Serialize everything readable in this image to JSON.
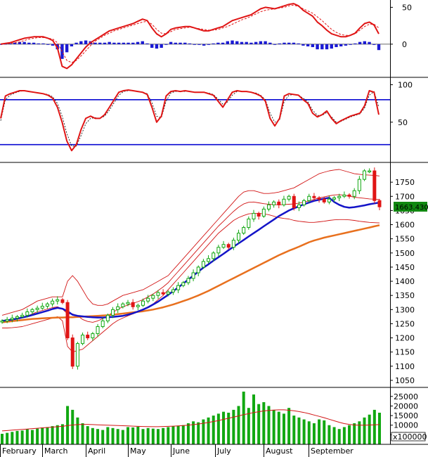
{
  "colors": {
    "up": "#11a811",
    "down": "#e01515",
    "ma_blue": "#1414c8",
    "ma_orange": "#e8701e",
    "band": "#d21414",
    "signal": "#e01515",
    "level_line": "#0a0ad2",
    "histogram": "#1a1ad4",
    "grid": "#c8c8c8",
    "tag_bg": "#118811"
  },
  "chart_data": [
    {
      "type": "line",
      "panel": "macd",
      "y_ticks": [
        "50",
        "0"
      ],
      "ylim": [
        -45,
        58
      ],
      "series": [
        {
          "values": [
            0,
            1,
            2,
            4,
            6,
            8,
            9,
            10,
            10,
            10,
            8,
            5,
            -5,
            -30,
            -33,
            -28,
            -20,
            -12,
            -4,
            2,
            6,
            10,
            14,
            18,
            20,
            22,
            24,
            26,
            28,
            31,
            34,
            32,
            22,
            14,
            10,
            14,
            20,
            22,
            23,
            24,
            24,
            22,
            20,
            18,
            18,
            20,
            22,
            24,
            28,
            32,
            34,
            36,
            38,
            40,
            44,
            48,
            50,
            49,
            48,
            50,
            52,
            54,
            55,
            52,
            46,
            42,
            38,
            30,
            25,
            19,
            14,
            12,
            10,
            10,
            12,
            15,
            22,
            28,
            30,
            26,
            14
          ]
        },
        {
          "values": [
            0,
            0.5,
            1,
            2,
            3,
            5,
            7,
            8,
            9,
            9,
            8,
            7,
            2,
            -10,
            -22,
            -25,
            -22,
            -16,
            -9,
            -2,
            4,
            8,
            12,
            15,
            18,
            20,
            22,
            24,
            26,
            28,
            30,
            31,
            27,
            20,
            15,
            14,
            17,
            20,
            21,
            22,
            23,
            22,
            21,
            20,
            19,
            19,
            20,
            22,
            24,
            27,
            30,
            33,
            35,
            38,
            41,
            44,
            46,
            47,
            48,
            49,
            50,
            52,
            53,
            51,
            48,
            45,
            42,
            37,
            32,
            26,
            20,
            16,
            13,
            12,
            12,
            14,
            19,
            24,
            27,
            27,
            22
          ]
        },
        {
          "values": [
            0,
            0.5,
            1,
            2,
            3,
            3,
            2,
            2,
            1,
            1,
            0,
            -2,
            -7,
            -20,
            -11,
            -3,
            2,
            4,
            5,
            4,
            2,
            2,
            2,
            3,
            2,
            2,
            2,
            2,
            2,
            3,
            4,
            1,
            -5,
            -6,
            -5,
            0,
            3,
            2,
            2,
            2,
            1,
            0,
            -1,
            -2,
            -1,
            1,
            2,
            2,
            4,
            5,
            4,
            3,
            3,
            2,
            3,
            4,
            4,
            2,
            0,
            1,
            2,
            2,
            2,
            1,
            -2,
            -3,
            -4,
            -7,
            -7,
            -7,
            -6,
            -4,
            -3,
            -2,
            0,
            1,
            3,
            4,
            3,
            -1,
            -8
          ]
        }
      ]
    },
    {
      "type": "line",
      "panel": "stochastic",
      "y_ticks": [
        "100",
        "50"
      ],
      "ylim": [
        0,
        108
      ],
      "levels": [
        80,
        20
      ],
      "series": [
        {
          "values": [
            55,
            85,
            88,
            90,
            92,
            92,
            91,
            90,
            89,
            88,
            86,
            82,
            70,
            50,
            25,
            12,
            20,
            40,
            55,
            58,
            55,
            55,
            60,
            70,
            80,
            90,
            92,
            93,
            92,
            91,
            90,
            87,
            70,
            50,
            58,
            85,
            91,
            92,
            91,
            92,
            91,
            90,
            90,
            90,
            88,
            86,
            78,
            70,
            80,
            90,
            92,
            91,
            91,
            90,
            88,
            85,
            78,
            55,
            45,
            55,
            85,
            88,
            87,
            86,
            80,
            75,
            62,
            57,
            60,
            65,
            55,
            48,
            52,
            55,
            58,
            60,
            62,
            72,
            92,
            90,
            60
          ]
        },
        {
          "values": [
            52,
            80,
            86,
            89,
            91,
            92,
            91,
            90,
            89,
            88,
            87,
            84,
            75,
            58,
            35,
            18,
            18,
            32,
            48,
            55,
            56,
            55,
            58,
            66,
            76,
            86,
            91,
            92,
            92,
            91,
            90,
            88,
            76,
            58,
            56,
            78,
            89,
            91,
            91,
            91,
            91,
            90,
            90,
            90,
            89,
            87,
            81,
            74,
            77,
            86,
            91,
            91,
            91,
            90,
            89,
            86,
            80,
            62,
            50,
            53,
            78,
            86,
            87,
            86,
            82,
            77,
            66,
            59,
            59,
            63,
            57,
            50,
            51,
            54,
            57,
            59,
            61,
            69,
            86,
            91,
            70
          ]
        }
      ]
    },
    {
      "type": "candlestick",
      "panel": "price",
      "x_labels": [
        "February",
        "March",
        "April",
        "May",
        "June",
        "July",
        "August",
        "September"
      ],
      "y_ticks": [
        "1750",
        "1700",
        "1650",
        "1600",
        "1550",
        "1500",
        "1450",
        "1400",
        "1350",
        "1300",
        "1250",
        "1200",
        "1150",
        "1100",
        "1050"
      ],
      "ylim": [
        1040,
        1800
      ],
      "last_price": "1663.430",
      "close": [
        1260,
        1265,
        1270,
        1275,
        1280,
        1292,
        1300,
        1305,
        1312,
        1320,
        1330,
        1335,
        1325,
        1200,
        1100,
        1180,
        1210,
        1200,
        1215,
        1240,
        1260,
        1280,
        1300,
        1310,
        1320,
        1325,
        1310,
        1315,
        1330,
        1340,
        1350,
        1360,
        1355,
        1362,
        1370,
        1385,
        1395,
        1410,
        1430,
        1450,
        1470,
        1480,
        1500,
        1520,
        1530,
        1520,
        1545,
        1570,
        1590,
        1620,
        1640,
        1630,
        1655,
        1670,
        1680,
        1670,
        1690,
        1700,
        1660,
        1670,
        1685,
        1700,
        1695,
        1690,
        1680,
        1690,
        1695,
        1700,
        1705,
        1700,
        1720,
        1760,
        1790,
        1790,
        1685,
        1663
      ],
      "ma50": [
        1260,
        1262,
        1265,
        1268,
        1272,
        1276,
        1281,
        1286,
        1291,
        1296,
        1302,
        1306,
        1303,
        1294,
        1282,
        1278,
        1276,
        1274,
        1273,
        1272,
        1272,
        1273,
        1274,
        1276,
        1278,
        1282,
        1287,
        1293,
        1300,
        1308,
        1318,
        1328,
        1340,
        1352,
        1365,
        1378,
        1392,
        1406,
        1420,
        1434,
        1448,
        1460,
        1473,
        1485,
        1497,
        1510,
        1522,
        1534,
        1546,
        1558,
        1570,
        1582,
        1594,
        1606,
        1618,
        1630,
        1640,
        1650,
        1658,
        1665,
        1672,
        1678,
        1684,
        1688,
        1692,
        1695,
        1680,
        1670,
        1663,
        1660,
        1662,
        1665,
        1668,
        1672,
        1675,
        1678
      ],
      "ma200": [
        1255,
        1257,
        1259,
        1261,
        1263,
        1265,
        1267,
        1268,
        1269,
        1270,
        1271,
        1272,
        1272,
        1273,
        1273,
        1274,
        1275,
        1276,
        1277,
        1278,
        1279,
        1280,
        1282,
        1284,
        1286,
        1288,
        1290,
        1292,
        1294,
        1297,
        1300,
        1304,
        1308,
        1313,
        1318,
        1324,
        1330,
        1336,
        1343,
        1350,
        1358,
        1366,
        1375,
        1384,
        1393,
        1402,
        1411,
        1420,
        1429,
        1438,
        1447,
        1456,
        1465,
        1474,
        1483,
        1492,
        1500,
        1508,
        1515,
        1522,
        1530,
        1538,
        1544,
        1549,
        1554,
        1558,
        1562,
        1566,
        1570,
        1574,
        1578,
        1582,
        1586,
        1590,
        1594,
        1598
      ],
      "band_upper": [
        1280,
        1285,
        1290,
        1295,
        1300,
        1310,
        1320,
        1330,
        1335,
        1340,
        1345,
        1345,
        1345,
        1400,
        1420,
        1400,
        1370,
        1340,
        1320,
        1315,
        1315,
        1320,
        1330,
        1340,
        1350,
        1355,
        1360,
        1365,
        1370,
        1380,
        1390,
        1400,
        1410,
        1420,
        1440,
        1460,
        1480,
        1500,
        1520,
        1540,
        1560,
        1580,
        1600,
        1620,
        1640,
        1660,
        1680,
        1700,
        1715,
        1720,
        1720,
        1715,
        1710,
        1710,
        1712,
        1715,
        1720,
        1725,
        1730,
        1740,
        1750,
        1760,
        1770,
        1780,
        1785,
        1790,
        1793,
        1795,
        1790,
        1785,
        1780,
        1778,
        1776,
        1775,
        1774,
        1772
      ],
      "band_lower": [
        1235,
        1235,
        1236,
        1238,
        1240,
        1245,
        1250,
        1255,
        1260,
        1265,
        1270,
        1275,
        1260,
        1170,
        1150,
        1155,
        1160,
        1175,
        1190,
        1205,
        1220,
        1235,
        1250,
        1262,
        1270,
        1278,
        1285,
        1292,
        1300,
        1310,
        1320,
        1335,
        1350,
        1370,
        1390,
        1410,
        1430,
        1450,
        1470,
        1490,
        1510,
        1530,
        1550,
        1570,
        1585,
        1600,
        1615,
        1625,
        1632,
        1638,
        1640,
        1640,
        1638,
        1635,
        1630,
        1625,
        1622,
        1620,
        1615,
        1612,
        1610,
        1608,
        1608,
        1610,
        1612,
        1615,
        1617,
        1618,
        1618,
        1617,
        1615,
        1612,
        1610,
        1608,
        1607,
        1606
      ],
      "band_mid": [
        1258,
        1260,
        1263,
        1267,
        1270,
        1277,
        1285,
        1292,
        1297,
        1302,
        1307,
        1310,
        1302,
        1285,
        1285,
        1278,
        1265,
        1258,
        1255,
        1260,
        1268,
        1278,
        1290,
        1301,
        1310,
        1316,
        1322,
        1328,
        1335,
        1345,
        1355,
        1367,
        1380,
        1395,
        1415,
        1435,
        1455,
        1475,
        1495,
        1515,
        1535,
        1555,
        1575,
        1595,
        1612,
        1630,
        1647,
        1662,
        1673,
        1679,
        1680,
        1677,
        1674,
        1672,
        1671,
        1670,
        1671,
        1672,
        1673,
        1676,
        1680,
        1684,
        1689,
        1695,
        1698,
        1702,
        1705,
        1706,
        1704,
        1701,
        1697,
        1695,
        1693,
        1691,
        1690,
        1689
      ]
    },
    {
      "type": "bar",
      "panel": "volume",
      "y_ticks": [
        "25000",
        "20000",
        "15000",
        "10000",
        "5000"
      ],
      "ylim": [
        0,
        27500
      ],
      "multiplier_label": "x100000",
      "values": [
        5500,
        6000,
        6500,
        7000,
        7200,
        8000,
        7500,
        8200,
        8800,
        9000,
        9500,
        10000,
        10500,
        20000,
        18000,
        14000,
        11000,
        9500,
        8500,
        8000,
        7500,
        9000,
        8500,
        8000,
        7500,
        9000,
        8800,
        9200,
        8000,
        8500,
        8200,
        8000,
        8500,
        9000,
        9500,
        9800,
        10000,
        11000,
        12000,
        11500,
        13000,
        14000,
        15000,
        16000,
        17000,
        16500,
        18000,
        20000,
        27500,
        19000,
        26000,
        21000,
        22000,
        20000,
        18000,
        17000,
        16000,
        19000,
        15000,
        14000,
        13000,
        12000,
        11000,
        13000,
        12500,
        10000,
        9000,
        8000,
        9000,
        10000,
        11000,
        12000,
        14000,
        15500,
        18000,
        16500
      ],
      "ma": [
        7000,
        7200,
        7400,
        7600,
        7800,
        8000,
        8200,
        8400,
        8600,
        8800,
        9000,
        9200,
        9400,
        9800,
        10100,
        10300,
        10400,
        10400,
        10300,
        10200,
        10100,
        10000,
        9900,
        9800,
        9700,
        9600,
        9500,
        9400,
        9300,
        9250,
        9200,
        9200,
        9300,
        9400,
        9500,
        9600,
        9800,
        10000,
        10300,
        10600,
        11000,
        11400,
        11900,
        12400,
        13000,
        13600,
        14200,
        14800,
        15500,
        16000,
        16600,
        17000,
        17400,
        17700,
        17900,
        18000,
        18000,
        17800,
        17500,
        17100,
        16600,
        16000,
        15300,
        14600,
        13900,
        13100,
        12300,
        11500,
        10800,
        10400,
        10100,
        10000,
        10000,
        10100,
        10200,
        10300
      ]
    }
  ]
}
